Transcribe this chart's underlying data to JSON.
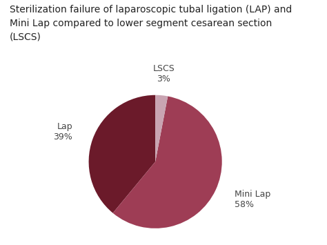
{
  "title": "Sterilization failure of laparoscopic tubal ligation (LAP) and\nMini Lap compared to lower segment cesarean section\n(LSCS)",
  "slices": [
    39,
    58,
    3
  ],
  "labels": [
    "Lap",
    "Mini Lap",
    "LSCS"
  ],
  "percentages": [
    "39%",
    "58%",
    "3%"
  ],
  "colors": [
    "#6b1a2a",
    "#9e3d55",
    "#c9a4b2"
  ],
  "background_color": "#ffffff",
  "title_fontsize": 10,
  "label_fontsize": 9,
  "startangle": 90
}
